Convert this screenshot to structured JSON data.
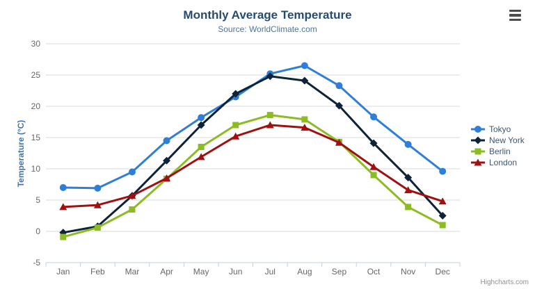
{
  "header": {
    "title": "Monthly Average Temperature",
    "subtitle": "Source: WorldClimate.com"
  },
  "export_menu": {
    "icon": "hamburger-menu-icon"
  },
  "credits": "Highcharts.com",
  "colors": {
    "title": "#274b6d",
    "subtitle": "#4d759e",
    "axis_title": "#4572a7",
    "axis_labels": "#666666",
    "gridline": "#d8d8d8",
    "axis_line": "#c0d0e0",
    "legend_text": "#3e576f",
    "credits_text": "#909090"
  },
  "chart_data": {
    "type": "line",
    "title": "Monthly Average Temperature",
    "subtitle": "Source: WorldClimate.com",
    "categories": [
      "Jan",
      "Feb",
      "Mar",
      "Apr",
      "May",
      "Jun",
      "Jul",
      "Aug",
      "Sep",
      "Oct",
      "Nov",
      "Dec"
    ],
    "xlabel": "",
    "ylabel": "Temperature (°C)",
    "ylim": [
      -5,
      30
    ],
    "ytick_interval": 5,
    "ytick_labels": [
      "-5",
      "0",
      "5",
      "10",
      "15",
      "20",
      "25",
      "30"
    ],
    "grid": true,
    "legend_position": "right",
    "series": [
      {
        "name": "Tokyo",
        "color": "#2f7ed8",
        "marker": "circle",
        "values": [
          7.0,
          6.9,
          9.5,
          14.5,
          18.2,
          21.5,
          25.2,
          26.5,
          23.3,
          18.3,
          13.9,
          9.6
        ]
      },
      {
        "name": "New York",
        "color": "#0d233a",
        "marker": "diamond",
        "values": [
          -0.2,
          0.8,
          5.7,
          11.3,
          17.0,
          22.0,
          24.8,
          24.1,
          20.1,
          14.1,
          8.6,
          2.5
        ]
      },
      {
        "name": "Berlin",
        "color": "#8bbc21",
        "marker": "square",
        "values": [
          -0.9,
          0.6,
          3.5,
          8.4,
          13.5,
          17.0,
          18.6,
          17.9,
          14.3,
          9.0,
          3.9,
          1.0
        ]
      },
      {
        "name": "London",
        "color": "#a01010",
        "marker": "triangle",
        "values": [
          3.9,
          4.2,
          5.7,
          8.5,
          11.9,
          15.2,
          17.0,
          16.6,
          14.2,
          10.3,
          6.6,
          4.8
        ]
      }
    ]
  }
}
